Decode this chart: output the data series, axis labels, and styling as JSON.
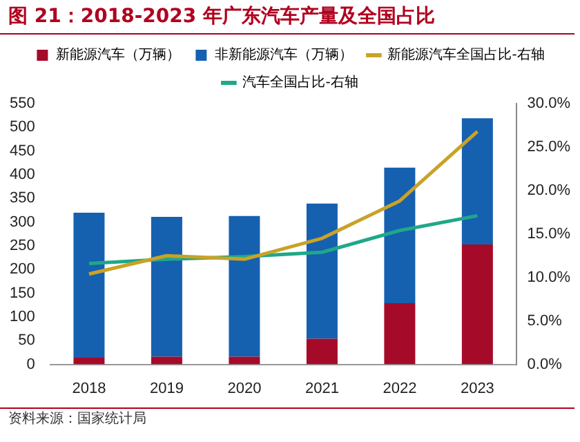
{
  "chart_data": {
    "type": "bar",
    "title": "图 21：2018-2023 年广东汽车产量及全国占比",
    "categories": [
      "2018",
      "2019",
      "2020",
      "2021",
      "2022",
      "2023"
    ],
    "stacked": true,
    "series": [
      {
        "name": "新能源汽车（万辆）",
        "color": "#a50a28",
        "values": [
          14,
          16,
          16,
          54,
          129,
          253
        ]
      },
      {
        "name": "非新能源汽车（万辆）",
        "color": "#1660b0",
        "values": [
          306,
          295,
          297,
          285,
          286,
          266
        ]
      },
      {
        "name": "新能源汽车全国占比-右轴",
        "type": "line",
        "axis": "y2",
        "color": "#c9a227",
        "values": [
          10.4,
          12.5,
          12.1,
          14.5,
          18.8,
          26.8
        ]
      },
      {
        "name": "汽车全国占比-右轴",
        "type": "line",
        "axis": "y2",
        "color": "#1fa888",
        "values": [
          11.6,
          12.1,
          12.4,
          12.9,
          15.4,
          17.1
        ]
      }
    ],
    "ylim": [
      0,
      550
    ],
    "yticks": [
      0,
      50,
      100,
      150,
      200,
      250,
      300,
      350,
      400,
      450,
      500,
      550
    ],
    "y2lim": [
      0,
      30
    ],
    "y2ticks": [
      {
        "value": 0,
        "label": "0.0%"
      },
      {
        "value": 5,
        "label": "5.0%"
      },
      {
        "value": 10,
        "label": "10.0%"
      },
      {
        "value": 15,
        "label": "15.0%"
      },
      {
        "value": 20,
        "label": "20.0%"
      },
      {
        "value": 25,
        "label": "25.0%"
      },
      {
        "value": 30,
        "label": "30.0%"
      }
    ],
    "grid": false,
    "legend": "top",
    "marker": "none",
    "annotations": [
      "资料来源：国家统计局"
    ]
  }
}
